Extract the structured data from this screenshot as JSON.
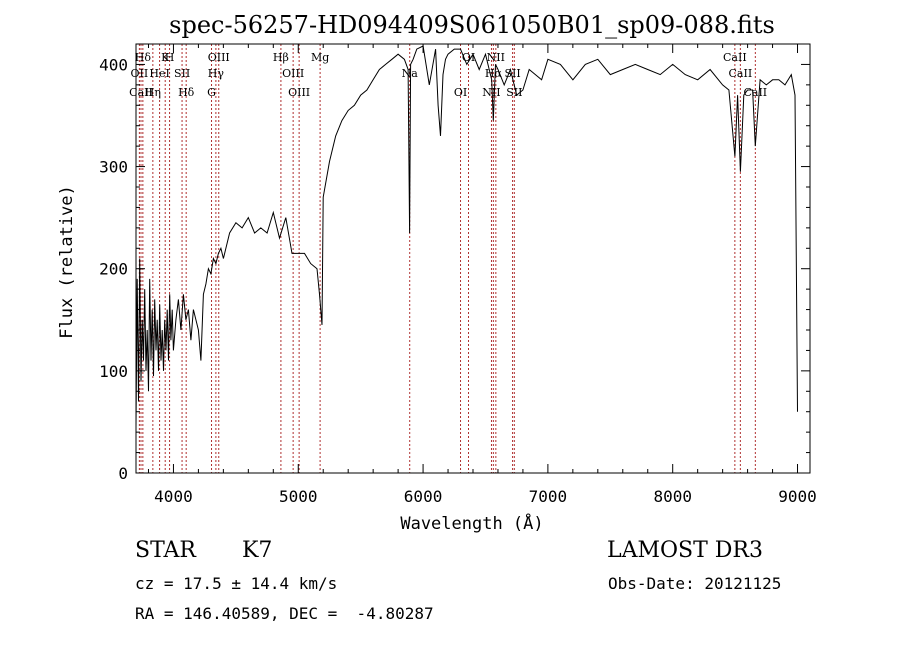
{
  "chart_data": {
    "type": "line",
    "title": "spec-56257-HD094409S061050B01_sp09-088.fits",
    "xlabel": "Wavelength (Å)",
    "ylabel": "Flux (relative)",
    "xlim": [
      3700,
      9100
    ],
    "ylim": [
      0,
      420
    ],
    "xticks": [
      4000,
      5000,
      6000,
      7000,
      8000,
      9000
    ],
    "yticks": [
      0,
      100,
      200,
      300,
      400
    ],
    "grid": false,
    "series": [
      {
        "color": "#000000",
        "x": [
          3700,
          3710,
          3720,
          3730,
          3740,
          3750,
          3760,
          3770,
          3780,
          3790,
          3800,
          3810,
          3820,
          3830,
          3840,
          3850,
          3860,
          3870,
          3880,
          3890,
          3900,
          3910,
          3920,
          3930,
          3940,
          3950,
          3960,
          3970,
          3980,
          3990,
          4000,
          4020,
          4040,
          4060,
          4080,
          4100,
          4120,
          4140,
          4160,
          4180,
          4200,
          4220,
          4240,
          4260,
          4280,
          4300,
          4320,
          4340,
          4360,
          4380,
          4400,
          4450,
          4500,
          4550,
          4600,
          4650,
          4700,
          4750,
          4800,
          4850,
          4900,
          4950,
          5000,
          5050,
          5100,
          5150,
          5170,
          5190,
          5200,
          5250,
          5300,
          5350,
          5400,
          5450,
          5500,
          5550,
          5600,
          5650,
          5700,
          5750,
          5800,
          5850,
          5880,
          5892,
          5900,
          5920,
          5950,
          6000,
          6050,
          6100,
          6120,
          6140,
          6160,
          6180,
          6200,
          6250,
          6300,
          6350,
          6400,
          6450,
          6500,
          6550,
          6563,
          6580,
          6600,
          6650,
          6700,
          6750,
          6800,
          6850,
          6900,
          6950,
          7000,
          7100,
          7200,
          7300,
          7400,
          7500,
          7600,
          7700,
          7800,
          7900,
          8000,
          8100,
          8200,
          8300,
          8400,
          8450,
          8498,
          8520,
          8542,
          8570,
          8600,
          8640,
          8662,
          8700,
          8750,
          8800,
          8850,
          8900,
          8950,
          8980,
          9000
        ],
        "y": [
          45,
          190,
          70,
          210,
          90,
          150,
          110,
          180,
          100,
          140,
          80,
          190,
          110,
          160,
          95,
          170,
          120,
          150,
          100,
          165,
          110,
          140,
          100,
          150,
          120,
          160,
          110,
          175,
          130,
          160,
          120,
          150,
          170,
          140,
          175,
          150,
          160,
          130,
          160,
          150,
          140,
          110,
          175,
          185,
          200,
          195,
          210,
          205,
          215,
          220,
          210,
          235,
          245,
          240,
          250,
          235,
          240,
          235,
          255,
          230,
          250,
          215,
          215,
          215,
          205,
          200,
          175,
          145,
          270,
          305,
          330,
          345,
          355,
          360,
          370,
          375,
          385,
          395,
          400,
          405,
          410,
          405,
          395,
          235,
          400,
          405,
          415,
          418,
          380,
          415,
          360,
          330,
          390,
          405,
          410,
          415,
          415,
          400,
          410,
          395,
          410,
          385,
          345,
          400,
          395,
          380,
          395,
          370,
          375,
          395,
          390,
          385,
          405,
          400,
          385,
          400,
          405,
          390,
          395,
          400,
          395,
          390,
          400,
          390,
          385,
          395,
          380,
          375,
          310,
          370,
          295,
          370,
          375,
          375,
          320,
          385,
          380,
          385,
          385,
          380,
          390,
          370,
          60
        ]
      }
    ],
    "lines": [
      {
        "label": "Hδ",
        "x": 3755
      },
      {
        "label": "OII",
        "x": 3727
      },
      {
        "label": "CaII",
        "x": 3740
      },
      {
        "label": "K",
        "x": 3934
      },
      {
        "label": "HeI",
        "x": 3889
      },
      {
        "label": "Hη",
        "x": 3835
      },
      {
        "label": "H",
        "x": 3969
      },
      {
        "label": "SII",
        "x": 4069
      },
      {
        "label": "Hδ",
        "x": 4102
      },
      {
        "label": "OIII",
        "x": 4363
      },
      {
        "label": "Hγ",
        "x": 4340
      },
      {
        "label": "G",
        "x": 4305
      },
      {
        "label": "Hβ",
        "x": 4861
      },
      {
        "label": "OIII",
        "x": 4959
      },
      {
        "label": "OIII",
        "x": 5007
      },
      {
        "label": "Mg",
        "x": 5175
      },
      {
        "label": "Na",
        "x": 5893
      },
      {
        "label": "OI",
        "x": 6300
      },
      {
        "label": "OI",
        "x": 6364
      },
      {
        "label": "Hα",
        "x": 6563
      },
      {
        "label": "NII",
        "x": 6548
      },
      {
        "label": "NII",
        "x": 6583
      },
      {
        "label": "SII",
        "x": 6717
      },
      {
        "label": "SII",
        "x": 6731
      },
      {
        "label": "CaII",
        "x": 8498
      },
      {
        "label": "CaII",
        "x": 8542
      },
      {
        "label": "CaII",
        "x": 8662
      }
    ]
  },
  "info": {
    "class": "STAR",
    "subclass": "K7",
    "survey": "LAMOST DR3",
    "cz": "cz = 17.5 ± 14.4 km/s",
    "obs_date": "Obs-Date: 20121125",
    "coords": "RA = 146.40589, DEC =  -4.80287"
  }
}
